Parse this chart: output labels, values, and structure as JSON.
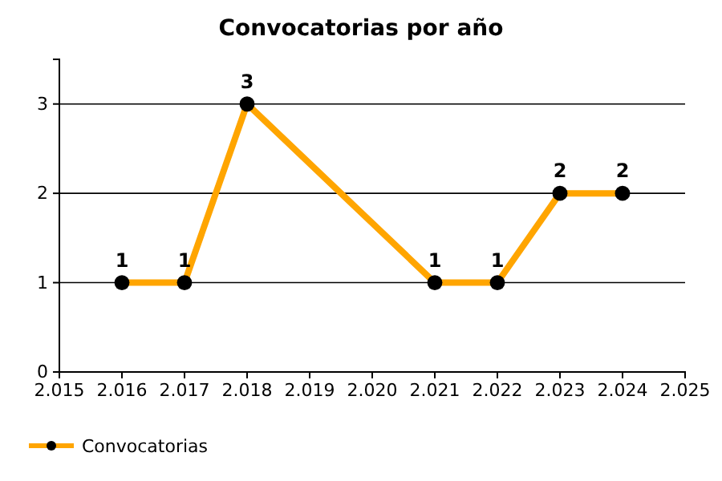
{
  "chart_data": {
    "type": "line",
    "title": "Convocatorias por año",
    "x": [
      2016,
      2017,
      2018,
      2021,
      2022,
      2023,
      2024
    ],
    "series": [
      {
        "name": "Convocatorias",
        "color": "#ffa500",
        "values": [
          1,
          1,
          3,
          1,
          1,
          2,
          2
        ]
      }
    ],
    "xlim": [
      2015,
      2025
    ],
    "xticks": [
      {
        "value": 2015,
        "label": "2.015"
      },
      {
        "value": 2016,
        "label": "2.016"
      },
      {
        "value": 2017,
        "label": "2.017"
      },
      {
        "value": 2018,
        "label": "2.018"
      },
      {
        "value": 2019,
        "label": "2.019"
      },
      {
        "value": 2020,
        "label": "2.020"
      },
      {
        "value": 2021,
        "label": "2.021"
      },
      {
        "value": 2022,
        "label": "2.022"
      },
      {
        "value": 2023,
        "label": "2.023"
      },
      {
        "value": 2024,
        "label": "2.024"
      },
      {
        "value": 2025,
        "label": "2.025"
      }
    ],
    "ylim": [
      0,
      3.5
    ],
    "yticks": [
      0,
      1,
      2,
      3
    ],
    "grid": "y",
    "legend": "bottom left",
    "marker": "circle",
    "line_style": "solid",
    "data_labels": true
  }
}
